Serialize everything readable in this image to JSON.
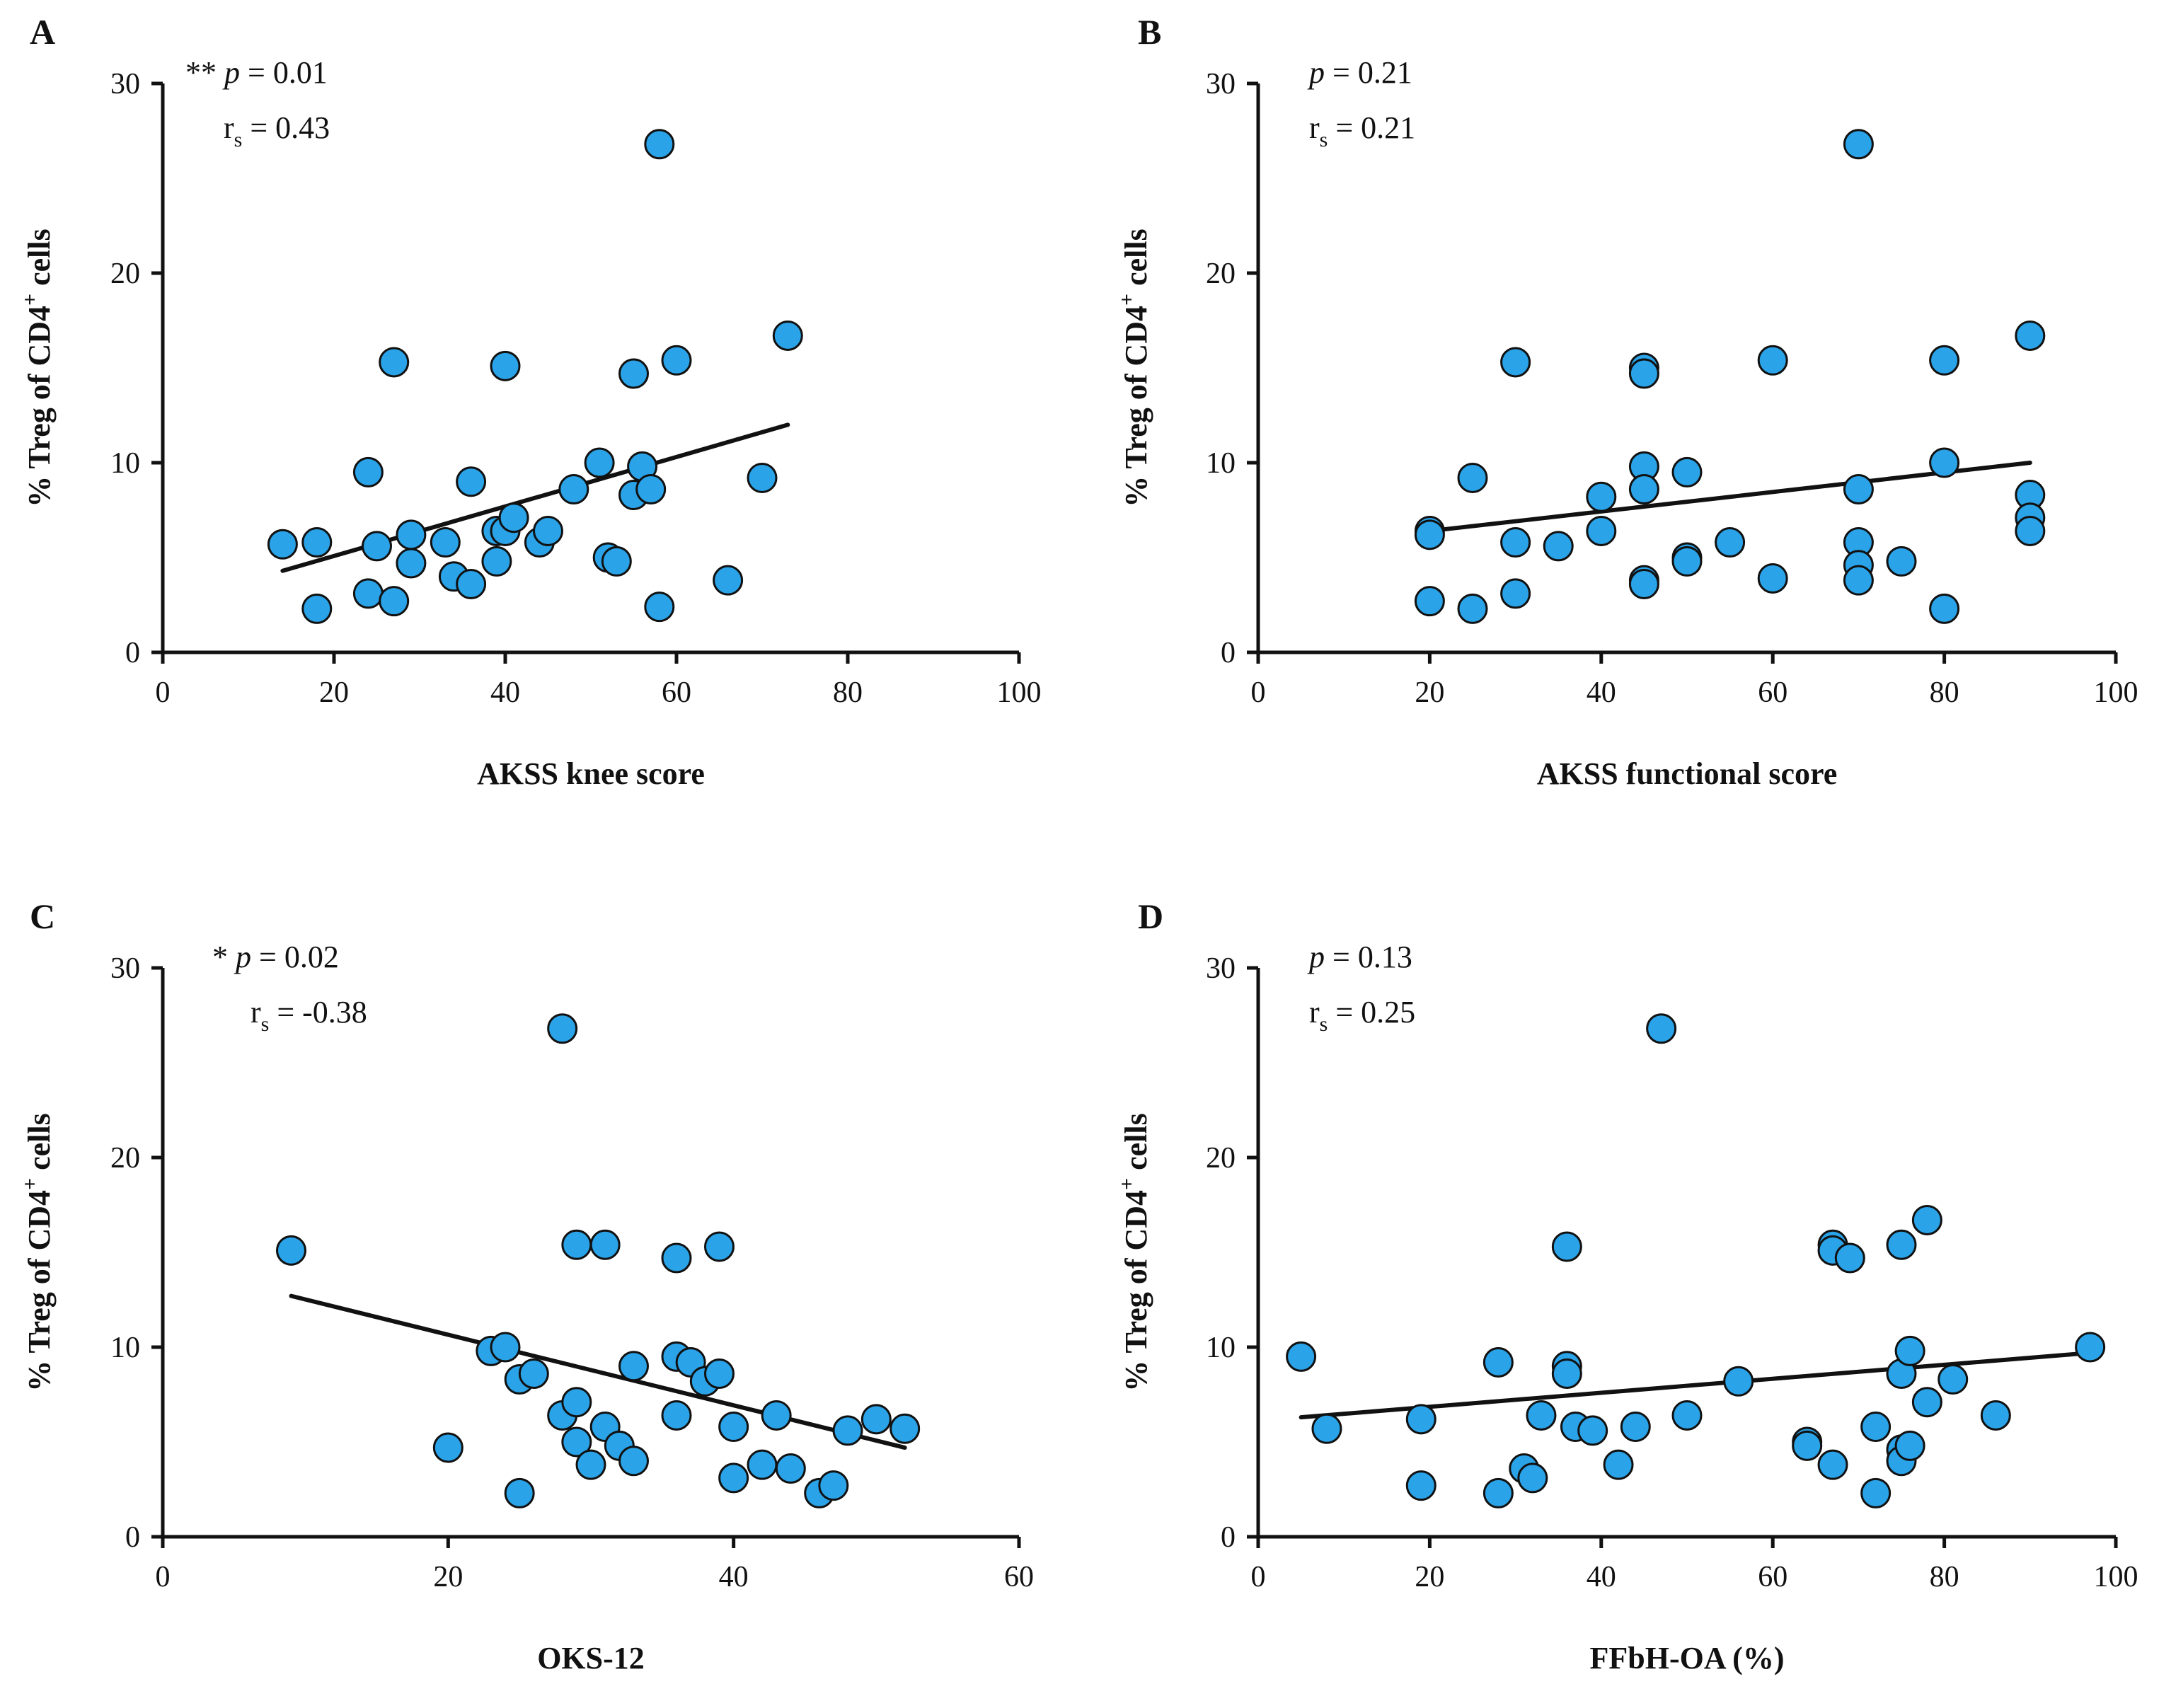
{
  "colors": {
    "point_fill": "#2aa3e8",
    "point_stroke": "#111111",
    "line": "#111111",
    "axis": "#111111"
  },
  "chart_data": [
    {
      "type": "scatter",
      "panel": "A",
      "xlabel": "AKSS knee score",
      "ylabel": {
        "prefix": "% Treg of CD4",
        "sup": "+",
        "suffix": " cells"
      },
      "xlim": [
        0,
        100
      ],
      "ylim": [
        0,
        30
      ],
      "xticks": [
        0,
        20,
        40,
        60,
        80,
        100
      ],
      "yticks": [
        0,
        10,
        20,
        30
      ],
      "stats": {
        "sig": "**",
        "p_label": "p",
        "p_value": "= 0.01",
        "r_label": "r",
        "r_sub": "s",
        "r_value": "= 0.43"
      },
      "trend": {
        "x": [
          14,
          73
        ],
        "y": [
          4.3,
          12.0
        ]
      },
      "points": [
        [
          14,
          5.7
        ],
        [
          18,
          5.8
        ],
        [
          18,
          2.3
        ],
        [
          24,
          9.5
        ],
        [
          24,
          3.1
        ],
        [
          25,
          5.6
        ],
        [
          27,
          15.3
        ],
        [
          27,
          2.7
        ],
        [
          29,
          6.2
        ],
        [
          29,
          4.7
        ],
        [
          33,
          5.8
        ],
        [
          34,
          4.0
        ],
        [
          36,
          9.0
        ],
        [
          36,
          3.6
        ],
        [
          39,
          6.4
        ],
        [
          39,
          4.8
        ],
        [
          40,
          15.1
        ],
        [
          40,
          6.4
        ],
        [
          41,
          7.1
        ],
        [
          44,
          5.8
        ],
        [
          45,
          6.4
        ],
        [
          48,
          8.6
        ],
        [
          51,
          10.0
        ],
        [
          52,
          5.0
        ],
        [
          53,
          4.8
        ],
        [
          55,
          14.7
        ],
        [
          55,
          8.3
        ],
        [
          56,
          9.8
        ],
        [
          57,
          8.6
        ],
        [
          58,
          26.8
        ],
        [
          58,
          2.4
        ],
        [
          60,
          15.4
        ],
        [
          66,
          3.8
        ],
        [
          70,
          9.2
        ],
        [
          73,
          16.7
        ]
      ]
    },
    {
      "type": "scatter",
      "panel": "B",
      "xlabel": "AKSS functional score",
      "ylabel": {
        "prefix": "% Treg of CD4",
        "sup": "+",
        "suffix": " cells"
      },
      "xlim": [
        0,
        100
      ],
      "ylim": [
        0,
        30
      ],
      "xticks": [
        0,
        20,
        40,
        60,
        80,
        100
      ],
      "yticks": [
        0,
        10,
        20,
        30
      ],
      "stats": {
        "sig": "",
        "p_label": "p",
        "p_value": "= 0.21",
        "r_label": "r",
        "r_sub": "s",
        "r_value": "= 0.21"
      },
      "trend": {
        "x": [
          20,
          90
        ],
        "y": [
          6.4,
          10.0
        ]
      },
      "points": [
        [
          20,
          6.4
        ],
        [
          20,
          6.2
        ],
        [
          20,
          2.7
        ],
        [
          25,
          9.2
        ],
        [
          25,
          2.3
        ],
        [
          30,
          15.3
        ],
        [
          30,
          5.8
        ],
        [
          30,
          3.1
        ],
        [
          35,
          5.6
        ],
        [
          40,
          8.2
        ],
        [
          40,
          6.4
        ],
        [
          45,
          15.0
        ],
        [
          45,
          14.7
        ],
        [
          45,
          9.8
        ],
        [
          45,
          8.6
        ],
        [
          45,
          3.8
        ],
        [
          45,
          3.6
        ],
        [
          50,
          9.5
        ],
        [
          50,
          5.0
        ],
        [
          50,
          4.8
        ],
        [
          55,
          5.8
        ],
        [
          60,
          15.4
        ],
        [
          60,
          3.9
        ],
        [
          70,
          26.8
        ],
        [
          70,
          8.6
        ],
        [
          70,
          5.8
        ],
        [
          70,
          4.6
        ],
        [
          70,
          3.8
        ],
        [
          75,
          4.8
        ],
        [
          80,
          15.4
        ],
        [
          80,
          10.0
        ],
        [
          80,
          2.3
        ],
        [
          90,
          16.7
        ],
        [
          90,
          8.3
        ],
        [
          90,
          7.1
        ],
        [
          90,
          6.4
        ]
      ]
    },
    {
      "type": "scatter",
      "panel": "C",
      "xlabel": "OKS-12",
      "ylabel": {
        "prefix": "% Treg of CD4",
        "sup": "+",
        "suffix": " cells"
      },
      "xlim": [
        0,
        60
      ],
      "ylim": [
        0,
        30
      ],
      "xticks": [
        0,
        20,
        40,
        60
      ],
      "yticks": [
        0,
        10,
        20,
        30
      ],
      "stats": {
        "sig": "*",
        "p_label": "p",
        "p_value": "= 0.02",
        "r_label": "r",
        "r_sub": "s",
        "r_value": "= -0.38"
      },
      "trend": {
        "x": [
          9,
          52
        ],
        "y": [
          12.7,
          4.7
        ]
      },
      "points": [
        [
          9,
          15.1
        ],
        [
          20,
          4.7
        ],
        [
          23,
          9.8
        ],
        [
          24,
          10.0
        ],
        [
          25,
          8.3
        ],
        [
          25,
          2.3
        ],
        [
          26,
          8.6
        ],
        [
          28,
          26.8
        ],
        [
          28,
          6.4
        ],
        [
          29,
          15.4
        ],
        [
          29,
          7.1
        ],
        [
          29,
          5.0
        ],
        [
          30,
          3.8
        ],
        [
          31,
          15.4
        ],
        [
          31,
          5.8
        ],
        [
          32,
          4.8
        ],
        [
          33,
          9.0
        ],
        [
          33,
          4.0
        ],
        [
          36,
          14.7
        ],
        [
          36,
          9.5
        ],
        [
          36,
          6.4
        ],
        [
          37,
          9.2
        ],
        [
          38,
          8.2
        ],
        [
          39,
          15.3
        ],
        [
          39,
          8.6
        ],
        [
          40,
          5.8
        ],
        [
          40,
          3.1
        ],
        [
          42,
          3.8
        ],
        [
          43,
          6.4
        ],
        [
          44,
          3.6
        ],
        [
          46,
          2.3
        ],
        [
          47,
          2.7
        ],
        [
          48,
          5.6
        ],
        [
          50,
          6.2
        ],
        [
          52,
          5.7
        ]
      ]
    },
    {
      "type": "scatter",
      "panel": "D",
      "xlabel": "FFbH-OA (%)",
      "ylabel": {
        "prefix": "% Treg of CD4",
        "sup": "+",
        "suffix": " cells"
      },
      "xlim": [
        0,
        100
      ],
      "ylim": [
        0,
        30
      ],
      "xticks": [
        0,
        20,
        40,
        60,
        80,
        100
      ],
      "yticks": [
        0,
        10,
        20,
        30
      ],
      "stats": {
        "sig": "",
        "p_label": "p",
        "p_value": "= 0.13",
        "r_label": "r",
        "r_sub": "s",
        "r_value": "= 0.25"
      },
      "trend": {
        "x": [
          5,
          97
        ],
        "y": [
          6.3,
          9.7
        ]
      },
      "points": [
        [
          5,
          9.5
        ],
        [
          8,
          5.7
        ],
        [
          19,
          6.2
        ],
        [
          19,
          2.7
        ],
        [
          28,
          9.2
        ],
        [
          28,
          2.3
        ],
        [
          31,
          3.6
        ],
        [
          32,
          3.1
        ],
        [
          33,
          6.4
        ],
        [
          36,
          15.3
        ],
        [
          36,
          9.0
        ],
        [
          36,
          8.6
        ],
        [
          37,
          5.8
        ],
        [
          39,
          5.6
        ],
        [
          42,
          3.8
        ],
        [
          44,
          5.8
        ],
        [
          47,
          26.8
        ],
        [
          50,
          6.4
        ],
        [
          56,
          8.2
        ],
        [
          64,
          5.0
        ],
        [
          64,
          4.8
        ],
        [
          67,
          15.4
        ],
        [
          67,
          15.1
        ],
        [
          67,
          3.8
        ],
        [
          69,
          14.7
        ],
        [
          72,
          5.8
        ],
        [
          72,
          2.3
        ],
        [
          75,
          15.4
        ],
        [
          75,
          8.6
        ],
        [
          75,
          4.6
        ],
        [
          75,
          4.0
        ],
        [
          76,
          9.8
        ],
        [
          76,
          4.8
        ],
        [
          78,
          16.7
        ],
        [
          78,
          7.1
        ],
        [
          81,
          8.3
        ],
        [
          86,
          6.4
        ],
        [
          97,
          10.0
        ]
      ]
    }
  ]
}
